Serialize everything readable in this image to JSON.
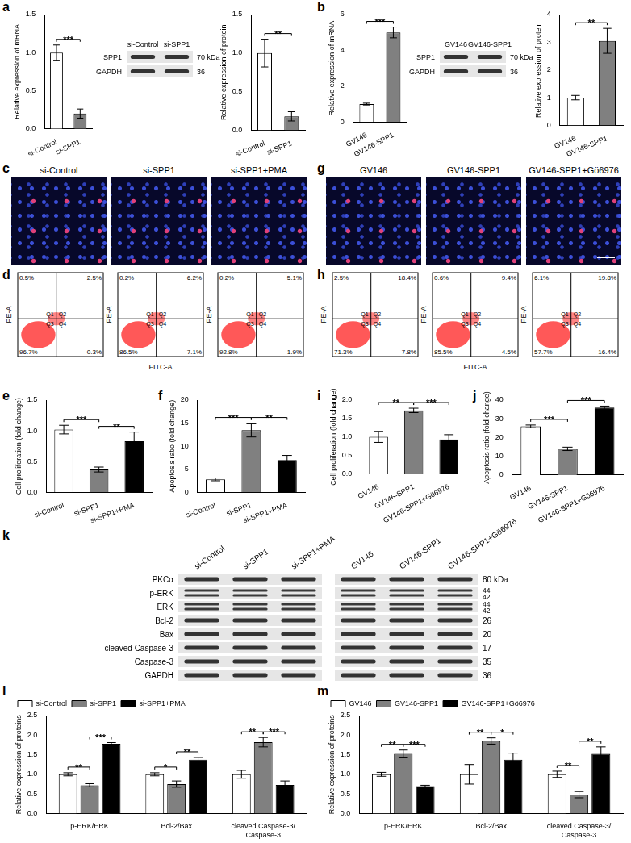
{
  "panel_labels": [
    "a",
    "b",
    "c",
    "g",
    "d",
    "h",
    "e",
    "f",
    "i",
    "j",
    "k",
    "l",
    "m"
  ],
  "chart_data": [
    {
      "type": "bar",
      "categories": [
        "si-Control",
        "si-SPP1"
      ],
      "values": [
        1.0,
        0.2
      ],
      "errors": [
        0.1,
        0.06
      ],
      "colors": [
        "#ffffff",
        "#808080"
      ],
      "ylabel": "Relative expression of mRNA",
      "ylim": [
        0,
        1.5
      ],
      "yticks": [
        {
          "value": 0,
          "label": "0.0"
        },
        0.5,
        {
          "value": 1,
          "label": "1.0"
        },
        1.5
      ],
      "grid": false,
      "significance": [
        {
          "from": 0,
          "to": 1,
          "label": "***"
        }
      ]
    },
    {
      "type": "bar",
      "categories": [
        "si-Control",
        "si-SPP1"
      ],
      "values": [
        1.0,
        0.18
      ],
      "errors": [
        0.18,
        0.06
      ],
      "colors": [
        "#ffffff",
        "#808080"
      ],
      "ylabel": "Relative expression of protein",
      "ylim": [
        0,
        1.5
      ],
      "yticks": [
        {
          "value": 0,
          "label": "0.0"
        },
        0.5,
        {
          "value": 1,
          "label": "1.0"
        },
        1.5
      ],
      "grid": false,
      "significance": [
        {
          "from": 0,
          "to": 1,
          "label": "**"
        }
      ]
    },
    {
      "type": "bar",
      "categories": [
        "GV146",
        "GV146-SPP1"
      ],
      "values": [
        1.0,
        5.0
      ],
      "errors": [
        0.05,
        0.3
      ],
      "colors": [
        "#ffffff",
        "#808080"
      ],
      "ylabel": "Relative expression of mRNA",
      "ylim": [
        0,
        6
      ],
      "yticks": [
        0,
        2,
        4,
        6
      ],
      "grid": false,
      "significance": [
        {
          "from": 0,
          "to": 1,
          "label": "***"
        }
      ]
    },
    {
      "type": "bar",
      "categories": [
        "GV146",
        "GV146-SPP1"
      ],
      "values": [
        1.0,
        3.05
      ],
      "errors": [
        0.08,
        0.45
      ],
      "colors": [
        "#ffffff",
        "#808080"
      ],
      "ylabel": "Relative expression of protein",
      "ylim": [
        0,
        4
      ],
      "yticks": [
        0,
        1,
        2,
        3,
        4
      ],
      "grid": false,
      "significance": [
        {
          "from": 0,
          "to": 1,
          "label": "**"
        }
      ]
    },
    {
      "type": "bar",
      "categories": [
        "si-Control",
        "si-SPP1",
        "si-SPP1+PMA"
      ],
      "values": [
        1.02,
        0.37,
        0.83
      ],
      "errors": [
        0.07,
        0.04,
        0.15
      ],
      "colors": [
        "#ffffff",
        "#808080",
        "#000000"
      ],
      "ylabel": "Cell proliferation (fold change)",
      "ylim": [
        0,
        1.5
      ],
      "yticks": [
        {
          "value": 0,
          "label": "0.0"
        },
        0.5,
        {
          "value": 1,
          "label": "1.0"
        },
        1.5
      ],
      "grid": false,
      "significance": [
        {
          "from": 0,
          "to": 1,
          "label": "***"
        },
        {
          "from": 1,
          "to": 2,
          "label": "**"
        }
      ]
    },
    {
      "type": "bar",
      "categories": [
        "si-Control",
        "si-SPP1",
        "si-SPP1+PMA"
      ],
      "values": [
        2.8,
        13.5,
        7.0
      ],
      "errors": [
        0.3,
        1.5,
        1.0
      ],
      "colors": [
        "#ffffff",
        "#808080",
        "#000000"
      ],
      "ylabel": "Apoptosis ratio (fold change)",
      "ylim": [
        0,
        20
      ],
      "yticks": [
        0,
        5,
        10,
        15,
        20
      ],
      "grid": false,
      "significance": [
        {
          "from": 0,
          "to": 1,
          "label": "***"
        },
        {
          "from": 1,
          "to": 2,
          "label": "**"
        }
      ]
    },
    {
      "type": "bar",
      "categories": [
        "GV146",
        "GV146-SPP1",
        "GV146-SPP1+Gö6976"
      ],
      "values": [
        1.0,
        1.72,
        0.93
      ],
      "errors": [
        0.15,
        0.06,
        0.13
      ],
      "colors": [
        "#ffffff",
        "#808080",
        "#000000"
      ],
      "ylabel": "Cell proliferation (fold change)",
      "ylim": [
        0,
        2
      ],
      "yticks": [
        {
          "value": 0,
          "label": "0.0"
        },
        0.5,
        {
          "value": 1,
          "label": "1.0"
        },
        1.5,
        {
          "value": 2,
          "label": "2.0"
        }
      ],
      "grid": false,
      "significance": [
        {
          "from": 0,
          "to": 1,
          "label": "**"
        },
        {
          "from": 1,
          "to": 2,
          "label": "***"
        }
      ]
    },
    {
      "type": "bar",
      "categories": [
        "GV146",
        "GV146-SPP1",
        "GV146-SPP1+Gö6976"
      ],
      "values": [
        26,
        14,
        36
      ],
      "errors": [
        0.7,
        0.9,
        0.8
      ],
      "colors": [
        "#ffffff",
        "#808080",
        "#000000"
      ],
      "ylabel": "Apoptosis ratio (fold change)",
      "ylim": [
        0,
        40
      ],
      "yticks": [
        0,
        10,
        20,
        30,
        40
      ],
      "grid": false,
      "significance": [
        {
          "from": 0,
          "to": 1,
          "label": "***"
        },
        {
          "from": 1,
          "to": 2,
          "label": "***"
        }
      ]
    },
    {
      "type": "bar",
      "categories": [
        "p-ERK/ERK",
        "Bcl-2/Bax",
        "cleaved Caspase-3/Caspase-3"
      ],
      "series": [
        {
          "name": "si-Control",
          "color": "#ffffff",
          "values": [
            1.0,
            1.0,
            1.0
          ],
          "errors": [
            0.04,
            0.04,
            0.1
          ]
        },
        {
          "name": "si-SPP1",
          "color": "#808080",
          "values": [
            0.72,
            0.75,
            1.82
          ],
          "errors": [
            0.04,
            0.08,
            0.12
          ]
        },
        {
          "name": "si-SPP1+PMA",
          "color": "#000000",
          "values": [
            1.78,
            1.37,
            0.73
          ],
          "errors": [
            0.03,
            0.06,
            0.1
          ]
        }
      ],
      "ylabel": "Relative expression of proteins",
      "ylim": [
        0,
        2.5
      ],
      "yticks": [
        {
          "value": 0,
          "label": "0.0"
        },
        0.5,
        {
          "value": 1,
          "label": "1.0"
        },
        1.5,
        {
          "value": 2,
          "label": "2.0"
        },
        2.5
      ],
      "grid": false,
      "legend": "upper left",
      "significance": [
        {
          "category": 0,
          "from": 0,
          "to": 1,
          "label": "**"
        },
        {
          "category": 0,
          "from": 1,
          "to": 2,
          "label": "***"
        },
        {
          "category": 1,
          "from": 0,
          "to": 1,
          "label": "*"
        },
        {
          "category": 1,
          "from": 1,
          "to": 2,
          "label": "**"
        },
        {
          "category": 2,
          "from": 0,
          "to": 1,
          "label": "**"
        },
        {
          "category": 2,
          "from": 1,
          "to": 2,
          "label": "***"
        }
      ]
    },
    {
      "type": "bar",
      "categories": [
        "p-ERK/ERK",
        "Bcl-2/Bax",
        "cleaved Caspase-3/Caspase-3"
      ],
      "series": [
        {
          "name": "GV146",
          "color": "#ffffff",
          "values": [
            1.0,
            1.0,
            1.0
          ],
          "errors": [
            0.05,
            0.25,
            0.08
          ]
        },
        {
          "name": "GV146-SPP1",
          "color": "#808080",
          "values": [
            1.52,
            1.85,
            0.48
          ],
          "errors": [
            0.1,
            0.08,
            0.08
          ]
        },
        {
          "name": "GV146-SPP1+Gö6976",
          "color": "#000000",
          "values": [
            0.7,
            1.37,
            1.52
          ],
          "errors": [
            0.02,
            0.17,
            0.18
          ]
        }
      ],
      "ylabel": "Relative expression of proteins",
      "ylim": [
        0,
        2.5
      ],
      "yticks": [
        {
          "value": 0,
          "label": "0.0"
        },
        0.5,
        {
          "value": 1,
          "label": "1.0"
        },
        1.5,
        {
          "value": 2,
          "label": "2.0"
        },
        2.5
      ],
      "grid": false,
      "legend": "upper left",
      "significance": [
        {
          "category": 0,
          "from": 0,
          "to": 1,
          "label": "**"
        },
        {
          "category": 0,
          "from": 1,
          "to": 2,
          "label": "***"
        },
        {
          "category": 1,
          "from": 0,
          "to": 1,
          "label": "**"
        },
        {
          "category": 1,
          "from": 1,
          "to": 2,
          "label": "*"
        },
        {
          "category": 2,
          "from": 0,
          "to": 1,
          "label": "**"
        },
        {
          "category": 2,
          "from": 1,
          "to": 2,
          "label": "**"
        }
      ]
    }
  ],
  "blots": [
    {
      "groups": [
        [
          "si-Control",
          "si-SPP1"
        ]
      ],
      "rows": [
        {
          "name": "SPP1",
          "mw": [
            "70 kDa"
          ]
        },
        {
          "name": "GAPDH",
          "mw": [
            "36"
          ]
        }
      ]
    },
    {
      "groups": [
        [
          "GV146",
          "GV146-SPP1"
        ]
      ],
      "rows": [
        {
          "name": "SPP1",
          "mw": [
            "70 kDa"
          ]
        },
        {
          "name": "GAPDH",
          "mw": [
            "36"
          ]
        }
      ]
    },
    {
      "groups": [
        [
          "si-Control",
          "si-SPP1",
          "si-SPP1+PMA"
        ],
        [
          "GV146",
          "GV146-SPP1",
          "GV146-SPP1+Gö6976"
        ]
      ],
      "rows": [
        {
          "name": "PKCα",
          "mw": [
            "80 kDa"
          ]
        },
        {
          "name": "p-ERK",
          "mw": [
            "44",
            "42"
          ]
        },
        {
          "name": "ERK",
          "mw": [
            "44",
            "42"
          ]
        },
        {
          "name": "Bcl-2",
          "mw": [
            "26"
          ]
        },
        {
          "name": "Bax",
          "mw": [
            "20"
          ]
        },
        {
          "name": "cleaved Caspase-3",
          "mw": [
            "17"
          ]
        },
        {
          "name": "Caspase-3",
          "mw": [
            "35"
          ]
        },
        {
          "name": "GAPDH",
          "mw": [
            "36"
          ]
        }
      ]
    }
  ],
  "images": [
    {
      "lanes": [
        "si-Control",
        "si-SPP1",
        "si-SPP1+PMA"
      ]
    },
    {
      "lanes": [
        "GV146",
        "GV146-SPP1",
        "GV146-SPP1+Gö6976"
      ]
    }
  ],
  "flow": [
    {
      "xlabel": "FITC-A",
      "ylabel": "PE-A",
      "plots": [
        {
          "Q1": "0.5%",
          "Q2": "2.5%",
          "Q3": "96.7%",
          "Q4": "0.3%"
        },
        {
          "Q1": "0.2%",
          "Q2": "6.2%",
          "Q3": "86.5%",
          "Q4": "7.1%"
        },
        {
          "Q1": "0.2%",
          "Q2": "5.1%",
          "Q3": "92.8%",
          "Q4": "1.9%"
        }
      ]
    },
    {
      "xlabel": "FITC-A",
      "ylabel": "PE-A",
      "plots": [
        {
          "Q1": "2.5%",
          "Q2": "18.4%",
          "Q3": "71.3%",
          "Q4": "7.8%"
        },
        {
          "Q1": "0.6%",
          "Q2": "9.4%",
          "Q3": "85.5%",
          "Q4": "4.5%"
        },
        {
          "Q1": "6.1%",
          "Q2": "19.8%",
          "Q3": "57.7%",
          "Q4": "16.4%"
        }
      ]
    }
  ]
}
